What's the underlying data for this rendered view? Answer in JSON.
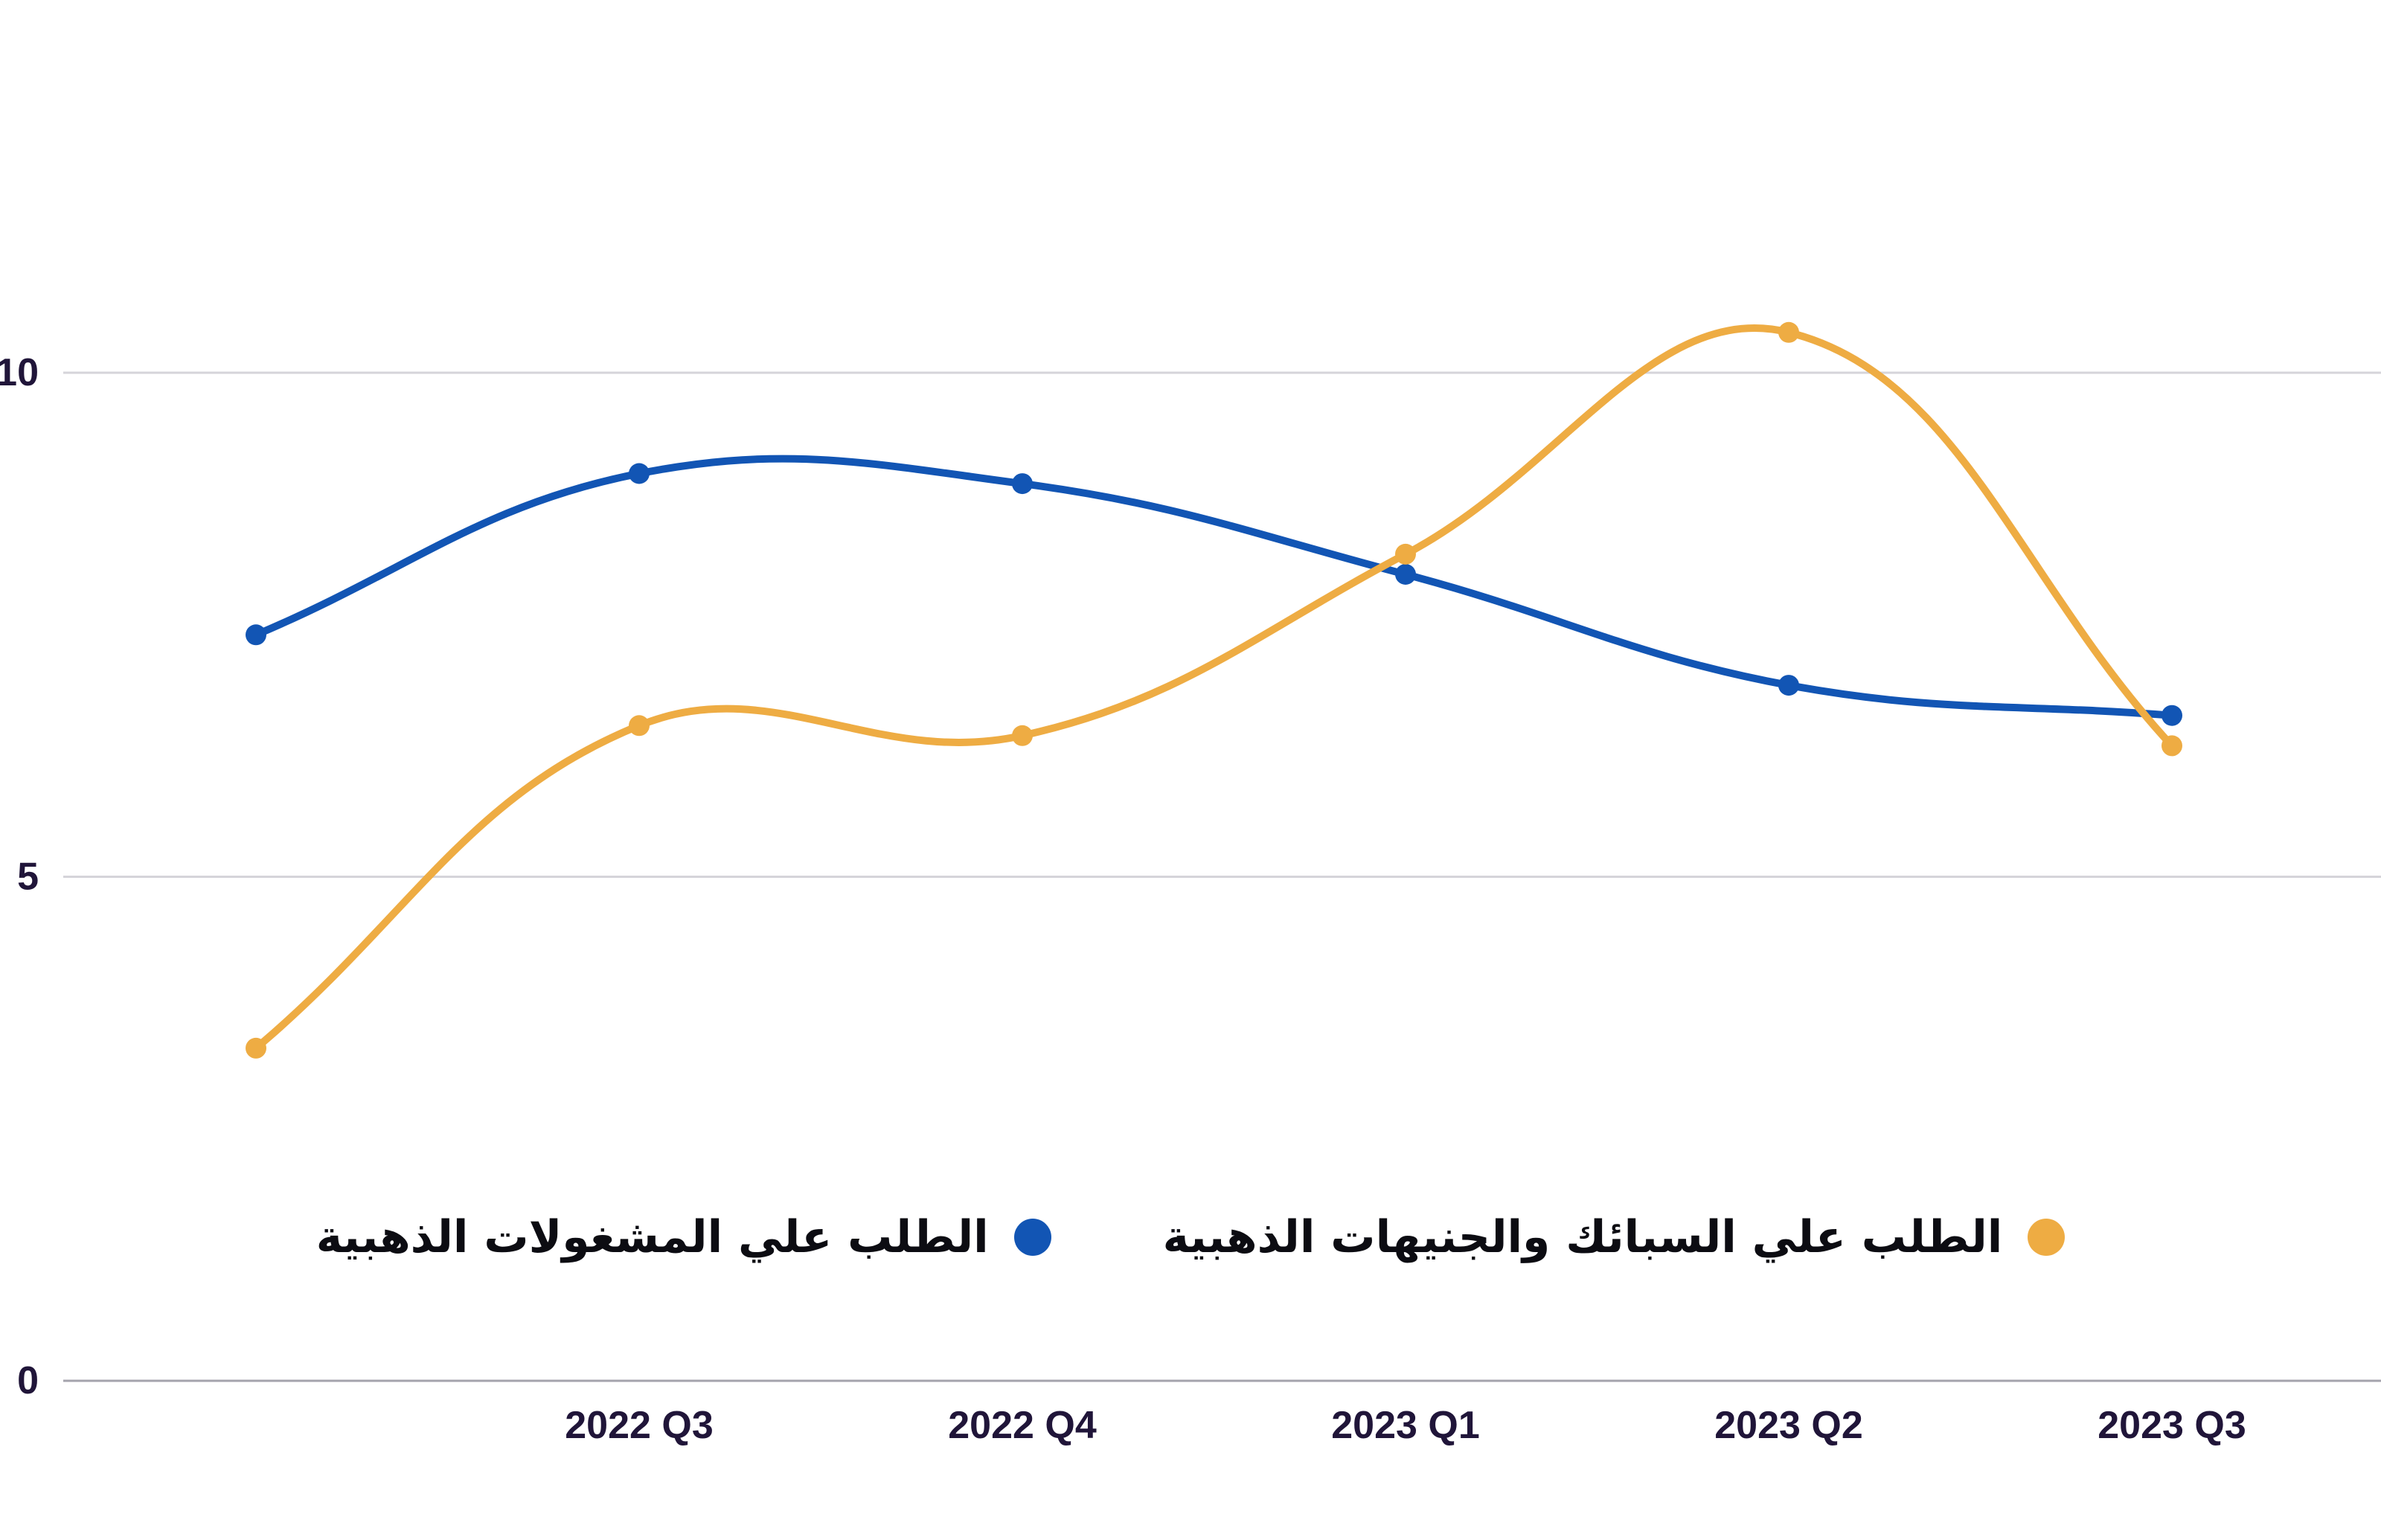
{
  "chart_data": {
    "type": "line",
    "categories": [
      "",
      "2022 Q3",
      "2022 Q4",
      "2023 Q1",
      "2023 Q2",
      "2023 Q3"
    ],
    "series": [
      {
        "key": "jewelry",
        "name": "الطلب علي المشغولات الذهبية",
        "color": "#1255B4",
        "values": [
          7.4,
          9.0,
          8.9,
          8.0,
          6.9,
          6.6
        ]
      },
      {
        "key": "bullion",
        "name": "الطلب علي السبائك والجنيهات الذهبية",
        "color": "#EEAC43",
        "values": [
          3.3,
          6.5,
          6.4,
          8.2,
          10.4,
          6.3
        ]
      }
    ],
    "yticks": [
      0,
      5,
      10
    ],
    "ylim": [
      0,
      13.7
    ],
    "grid": "horizontal",
    "legend_position": "bottom-center",
    "line_tension": 0.4,
    "colors": {
      "grid": "#D5D4DA",
      "axis": "#A4A3AC",
      "tick_text": "#201539"
    }
  }
}
